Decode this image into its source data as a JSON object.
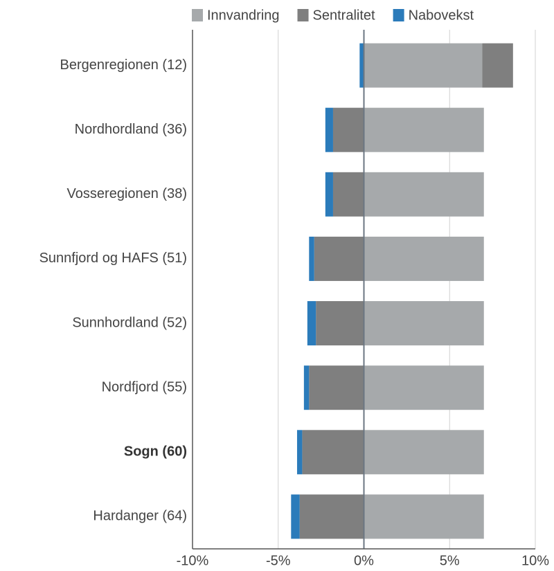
{
  "chart_data": {
    "type": "stacked-bar-horizontal",
    "categories": [
      "Bergenregionen (12)",
      "Nordhordland (36)",
      "Vosseregionen (38)",
      "Sunnfjord og HAFS (51)",
      "Sunnhordland (52)",
      "Nordfjord (55)",
      "Sogn (60)",
      "Hardanger (64)"
    ],
    "bold_category": "Sogn (60)",
    "series": [
      {
        "name": "Innvandring",
        "color": "#a6a9ab",
        "values": [
          6.9,
          7,
          7,
          7,
          7,
          7,
          7,
          7
        ]
      },
      {
        "name": "Sentralitet",
        "color": "#7f7f7f",
        "values": [
          1.8,
          -1.8,
          -1.8,
          -2.9,
          -2.8,
          -3.2,
          -3.6,
          -3.75
        ]
      },
      {
        "name": "Nabovekst",
        "color": "#2b7bba",
        "values": [
          -0.25,
          -0.45,
          -0.45,
          -0.3,
          -0.5,
          -0.3,
          -0.3,
          -0.5
        ]
      }
    ],
    "xlim": [
      -10,
      10
    ],
    "xticks": [
      {
        "value": -10,
        "label": "-10%"
      },
      {
        "value": -5,
        "label": "-5%"
      },
      {
        "value": 0,
        "label": "0%"
      },
      {
        "value": 5,
        "label": "5%"
      },
      {
        "value": 10,
        "label": "10%"
      }
    ],
    "grid": true,
    "legend": "top"
  }
}
